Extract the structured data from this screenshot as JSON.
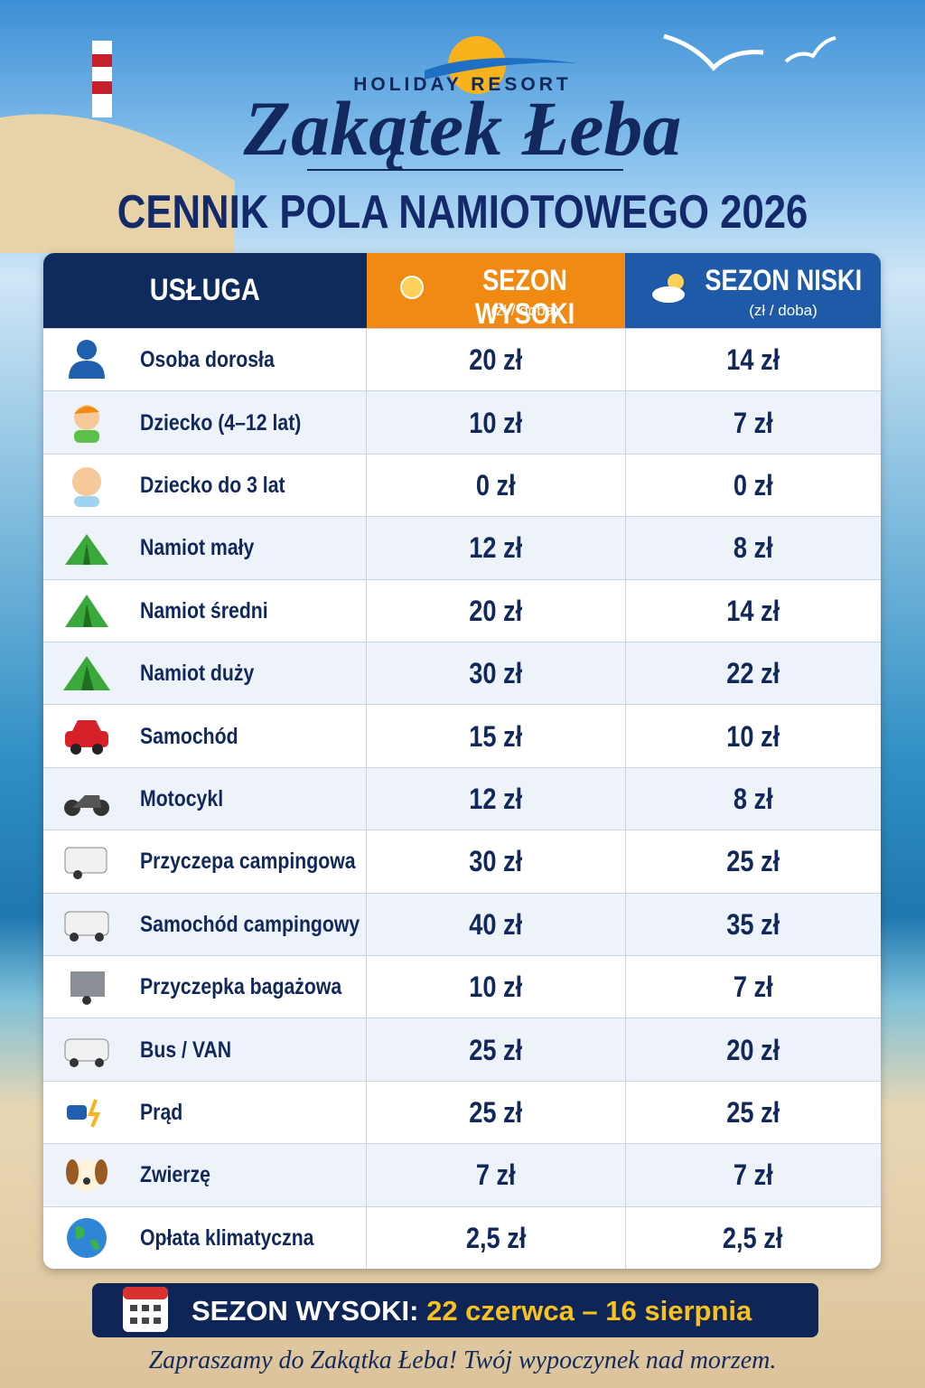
{
  "header": {
    "brand_top": "HOLIDAY RESORT",
    "brand": "Zakątek Łeba",
    "title": "CENNIK POLA NAMIOTOWEGO 2026"
  },
  "table": {
    "columns": [
      "USŁUGA",
      {
        "title": "SEZON WYSOKI",
        "unit": "(zł / doba)"
      },
      {
        "title": "SEZON NISKI",
        "unit": "(zł / doba)"
      }
    ],
    "rows": [
      [
        "Osoba dorosła",
        "20 zł",
        "14 zł"
      ],
      [
        "Dziecko (4–12 lat)",
        "10 zł",
        "7 zł"
      ],
      [
        "Dziecko do 3 lat",
        "0 zł",
        "0 zł"
      ],
      [
        "Namiot mały",
        "12 zł",
        "8 zł"
      ],
      [
        "Namiot średni",
        "20 zł",
        "14 zł"
      ],
      [
        "Namiot duży",
        "30 zł",
        "22 zł"
      ],
      [
        "Samochód",
        "15 zł",
        "10 zł"
      ],
      [
        "Motocykl",
        "12 zł",
        "8 zł"
      ],
      [
        "Przyczepa campingowa",
        "30 zł",
        "25 zł"
      ],
      [
        "Samochód campingowy",
        "40 zł",
        "35 zł"
      ],
      [
        "Przyczepka bagażowa",
        "10 zł",
        "7 zł"
      ],
      [
        "Bus / VAN",
        "25 zł",
        "20 zł"
      ],
      [
        "Prąd",
        "25 zł",
        "25 zł"
      ],
      [
        "Zwierzę",
        "7 zł",
        "7 zł"
      ],
      [
        "Opłata klimatyczna",
        "2,5 zł",
        "2,5 zł"
      ]
    ]
  },
  "footer": {
    "season_label": "SEZON WYSOKI:",
    "season_dates": "22 czerwca – 16 sierpnia",
    "tagline": "Zapraszamy do Zakątka Łeba! Twój wypoczynek nad morzem."
  }
}
